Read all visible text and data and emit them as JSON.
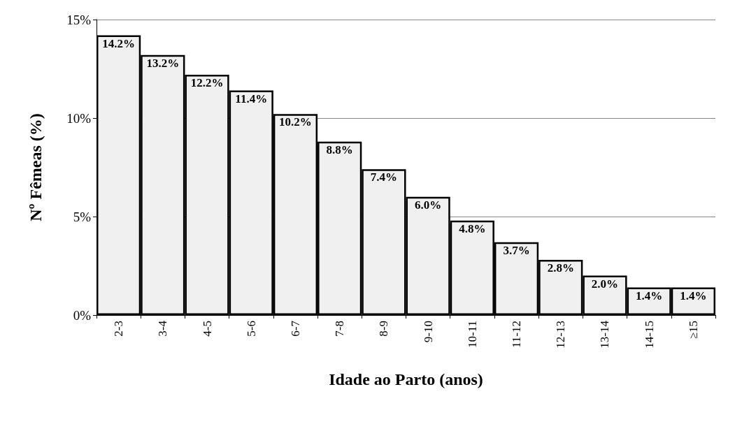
{
  "chart_data": {
    "type": "bar",
    "xlabel": "Idade ao Parto (anos)",
    "ylabel": "Nº Fêmeas (%)",
    "categories": [
      "2-3",
      "3-4",
      "4-5",
      "5-6",
      "6-7",
      "7-8",
      "8-9",
      "9-10",
      "10-11",
      "11-12",
      "12-13",
      "13-14",
      "14-15",
      "≥15"
    ],
    "values": [
      14.2,
      13.2,
      12.2,
      11.4,
      10.2,
      8.8,
      7.4,
      6.0,
      4.8,
      3.7,
      2.8,
      2.0,
      1.4,
      1.4
    ],
    "value_labels": [
      "14.2%",
      "13.2%",
      "12.2%",
      "11.4%",
      "10.2%",
      "8.8%",
      "7.4%",
      "6.0%",
      "4.8%",
      "3.7%",
      "2.8%",
      "2.0%",
      "1.4%",
      "1.4%"
    ],
    "color": "#f0f0f0",
    "ylim": [
      0,
      15
    ],
    "yticks": [
      {
        "value": 0,
        "label": "0%"
      },
      {
        "value": 5,
        "label": "5%"
      },
      {
        "value": 10,
        "label": "10%"
      },
      {
        "value": 15,
        "label": "15%"
      }
    ],
    "grid": "y"
  }
}
